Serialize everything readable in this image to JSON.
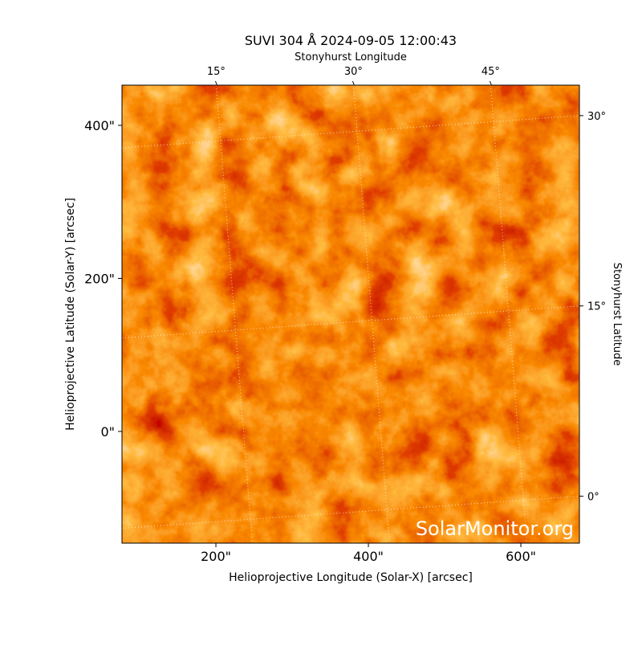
{
  "chart_data": {
    "type": "image",
    "title": "SUVI 304 Å 2024-09-05 12:00:43",
    "xlabel": "Helioprojective Longitude (Solar-X) [arcsec]",
    "ylabel": "Helioprojective Latitude (Solar-Y) [arcsec]",
    "x2label": "Stonyhurst Longitude",
    "y2label": "Stonyhurst Latitude",
    "watermark": "SolarMonitor.org",
    "xlim": [
      76.8,
      676.8
    ],
    "ylim": [
      -146,
      452.5
    ],
    "xticks": [
      {
        "value": 200,
        "label": "200\""
      },
      {
        "value": 400,
        "label": "400\""
      },
      {
        "value": 600,
        "label": "600\""
      }
    ],
    "yticks": [
      {
        "value": 0,
        "label": "0\""
      },
      {
        "value": 200,
        "label": "200\""
      },
      {
        "value": 400,
        "label": "400\""
      }
    ],
    "x2lim": [
      4.7,
      54.7
    ],
    "x2ticks": [
      {
        "value": 15,
        "label": "15°"
      },
      {
        "value": 30,
        "label": "30°"
      },
      {
        "value": 45,
        "label": "45°"
      }
    ],
    "y2lim": [
      -3.7,
      32.4
    ],
    "y2ticks": [
      {
        "value": 0,
        "label": "0°"
      },
      {
        "value": 15,
        "label": "15°"
      },
      {
        "value": 30,
        "label": "30°"
      }
    ],
    "grid": true
  }
}
